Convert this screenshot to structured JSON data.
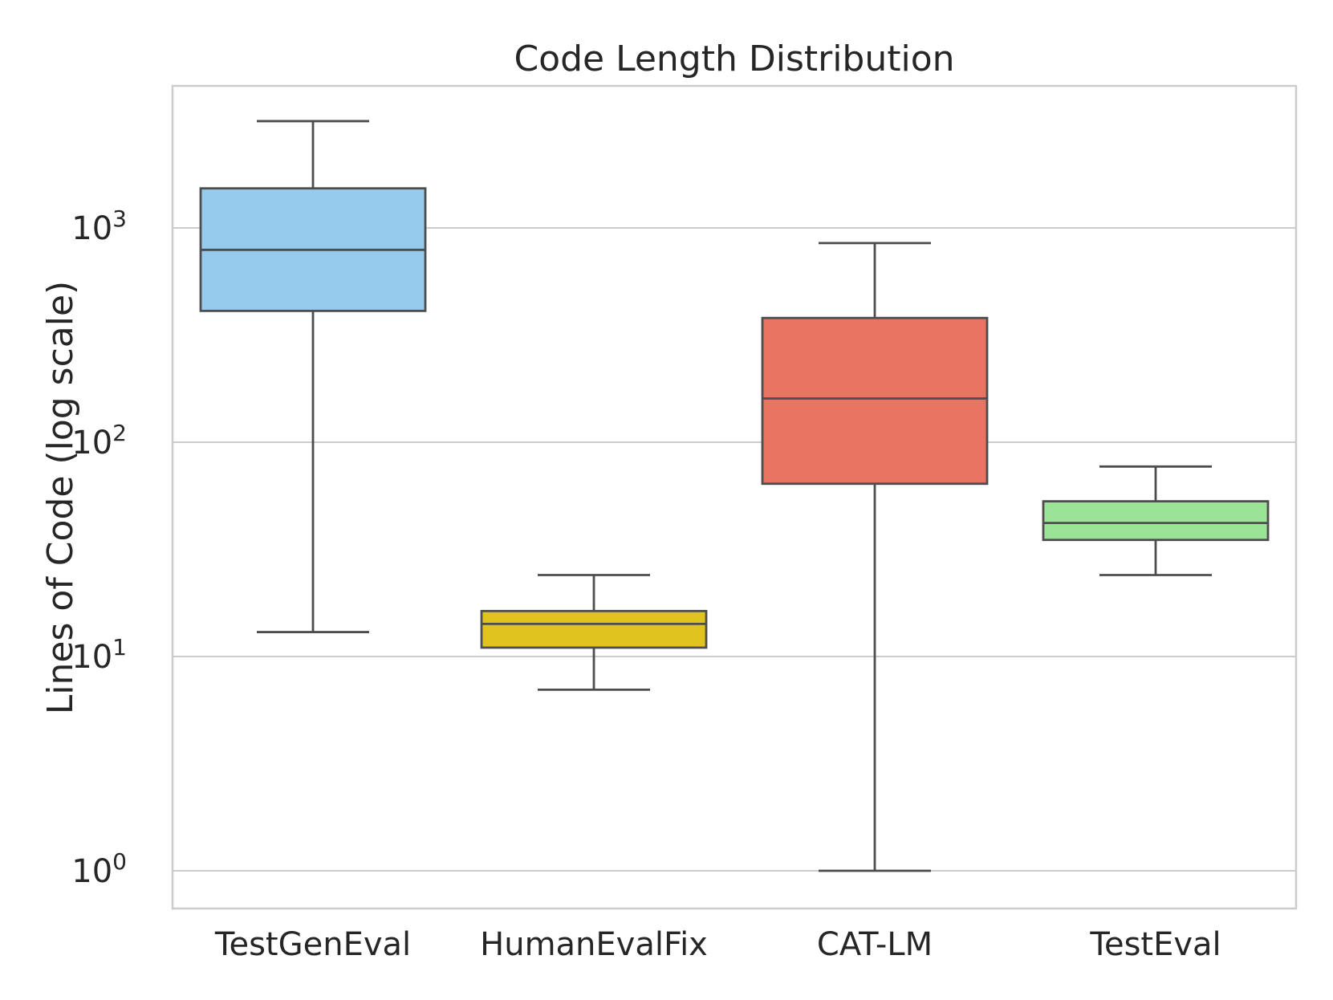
{
  "chart_data": {
    "type": "box",
    "title": "Code Length Distribution",
    "xlabel": "",
    "ylabel": "Lines of Code (log scale)",
    "yscale": "log",
    "ylim": [
      0.67,
      4500
    ],
    "yticks": [
      {
        "value": 1,
        "base": "10",
        "exp": "0"
      },
      {
        "value": 10,
        "base": "10",
        "exp": "1"
      },
      {
        "value": 100,
        "base": "10",
        "exp": "2"
      },
      {
        "value": 1000,
        "base": "10",
        "exp": "3"
      }
    ],
    "grid": true,
    "categories": [
      "TestGenEval",
      "HumanEvalFix",
      "CAT-LM",
      "TestEval"
    ],
    "boxes": [
      {
        "name": "TestGenEval",
        "whisker_low": 13,
        "q1": 410,
        "median": 790,
        "q3": 1530,
        "whisker_high": 3150,
        "color": "#96cbee"
      },
      {
        "name": "HumanEvalFix",
        "whisker_low": 7,
        "q1": 11,
        "median": 14.2,
        "q3": 16.3,
        "whisker_high": 24,
        "color": "#e0c31d"
      },
      {
        "name": "CAT-LM",
        "whisker_low": 1,
        "q1": 64,
        "median": 160,
        "q3": 380,
        "whisker_high": 850,
        "color": "#e97461"
      },
      {
        "name": "TestEval",
        "whisker_low": 24,
        "q1": 35,
        "median": 42,
        "q3": 53,
        "whisker_high": 77,
        "color": "#9ae397"
      }
    ]
  }
}
